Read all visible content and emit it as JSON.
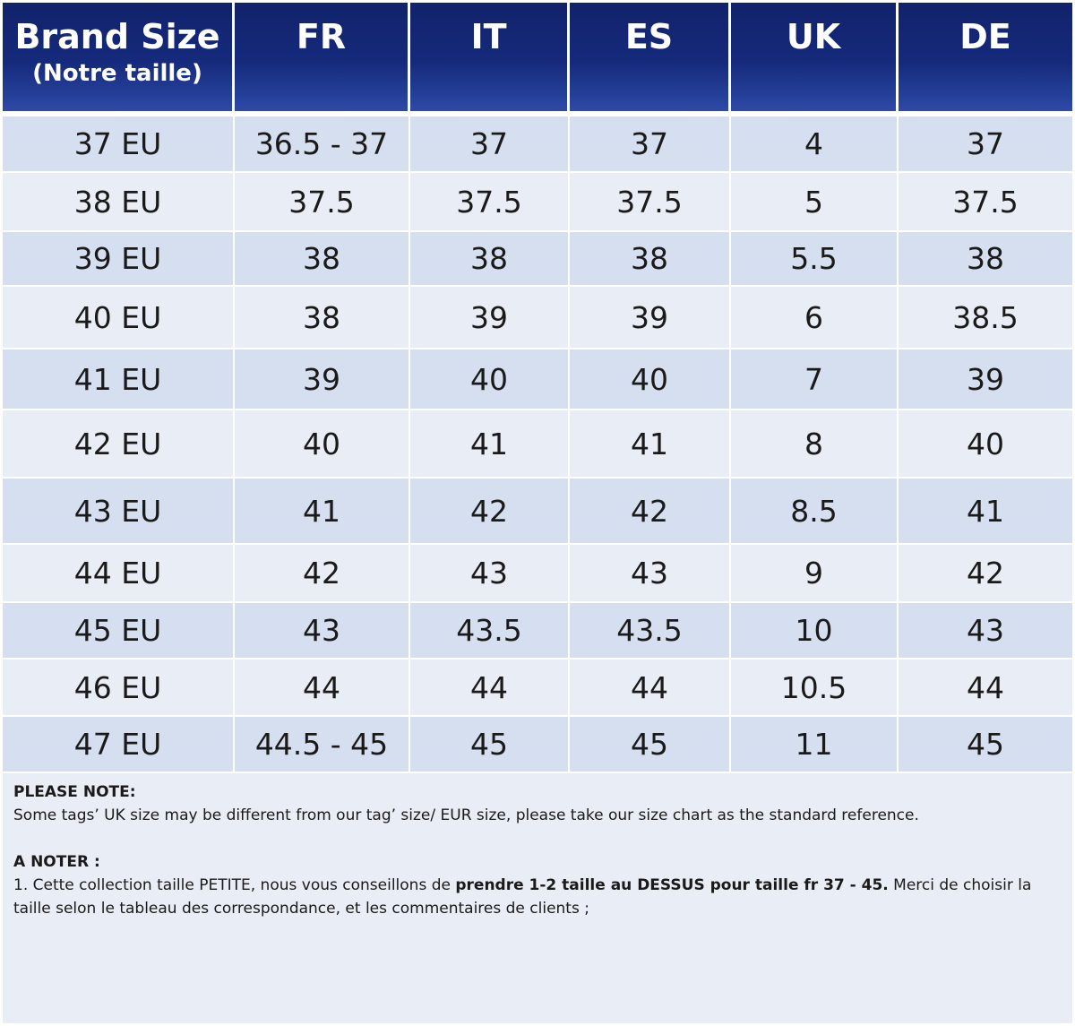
{
  "table": {
    "headers": [
      {
        "main": "Brand Size",
        "sub": "(Notre taille)"
      },
      {
        "main": "FR"
      },
      {
        "main": "IT"
      },
      {
        "main": "ES"
      },
      {
        "main": "UK"
      },
      {
        "main": "DE"
      }
    ],
    "rows": [
      [
        "37 EU",
        "36.5 - 37",
        "37",
        "37",
        "4",
        "37"
      ],
      [
        "38 EU",
        "37.5",
        "37.5",
        "37.5",
        "5",
        "37.5"
      ],
      [
        "39 EU",
        "38",
        "38",
        "38",
        "5.5",
        "38"
      ],
      [
        "40 EU",
        "38",
        "39",
        "39",
        "6",
        "38.5"
      ],
      [
        "41 EU",
        "39",
        "40",
        "40",
        "7",
        "39"
      ],
      [
        "42 EU",
        "40",
        "41",
        "41",
        "8",
        "40"
      ],
      [
        "43 EU",
        "41",
        "42",
        "42",
        "8.5",
        "41"
      ],
      [
        "44 EU",
        "42",
        "43",
        "43",
        "9",
        "42"
      ],
      [
        "45 EU",
        "43",
        "43.5",
        "43.5",
        "10",
        "43"
      ],
      [
        "46 EU",
        "44",
        "44",
        "44",
        "10.5",
        "44"
      ],
      [
        "47 EU",
        "44.5 - 45",
        "45",
        "45",
        "11",
        "45"
      ]
    ]
  },
  "notes": {
    "en_title": "PLEASE NOTE:",
    "en_text": "Some tags’ UK size  may be different from our tag’ size/ EUR size, please take our size chart as the standard reference.",
    "fr_title": "A NOTER :",
    "fr_text_1": "1. Cette collection taille PETITE, nous vous conseillons de ",
    "fr_text_bold": "prendre 1-2 taille au DESSUS pour taille fr 37 - 45.",
    "fr_text_2": "  Merci de choisir la taille selon le tableau des correspondance, et  les commentaires de clients ;"
  },
  "colors": {
    "header_dark": "#12226b",
    "header_light": "#2d4aa6",
    "row_band": "#d5dff0",
    "row_plain": "#e9edf5"
  }
}
